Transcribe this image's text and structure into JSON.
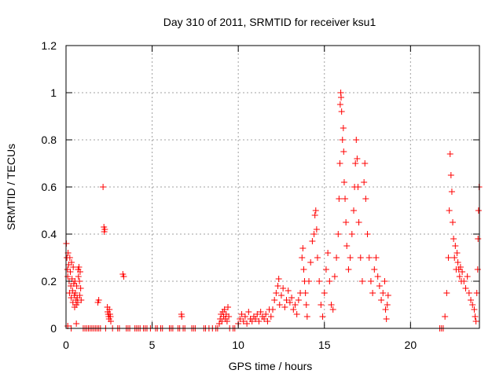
{
  "chart_data": {
    "type": "scatter",
    "title": "Day 310 of 2011, SRMTID for receiver ksu1",
    "xlabel": "GPS time / hours",
    "ylabel": "SRMTID / TECUs",
    "xlim": [
      0,
      24
    ],
    "ylim": [
      0,
      1.2
    ],
    "xticks": [
      0,
      5,
      10,
      15,
      20
    ],
    "xtick_labels": [
      "0",
      "5",
      "10",
      "15",
      "20"
    ],
    "yticks": [
      0,
      0.2,
      0.4,
      0.6,
      0.8,
      1,
      1.2
    ],
    "ytick_labels": [
      "0",
      "0.2",
      "0.4",
      "0.6",
      "0.8",
      "1",
      "1.2"
    ],
    "grid": true,
    "marker": "+",
    "series_color": "#ff0000",
    "series": [
      {
        "name": "",
        "points": [
          [
            0.02,
            0.36
          ],
          [
            0.05,
            0.3
          ],
          [
            0.08,
            0.25
          ],
          [
            0.1,
            0.22
          ],
          [
            0.12,
            0.32
          ],
          [
            0.15,
            0.27
          ],
          [
            0.18,
            0.2
          ],
          [
            0.2,
            0.15
          ],
          [
            0.22,
            0.3
          ],
          [
            0.25,
            0.24
          ],
          [
            0.28,
            0.18
          ],
          [
            0.3,
            0.13
          ],
          [
            0.32,
            0.28
          ],
          [
            0.35,
            0.21
          ],
          [
            0.38,
            0.16
          ],
          [
            0.4,
            0.11
          ],
          [
            0.42,
            0.26
          ],
          [
            0.45,
            0.19
          ],
          [
            0.48,
            0.14
          ],
          [
            0.5,
            0.09
          ],
          [
            0.52,
            0.2
          ],
          [
            0.55,
            0.15
          ],
          [
            0.58,
            0.12
          ],
          [
            0.6,
            0.1
          ],
          [
            0.62,
            0.18
          ],
          [
            0.65,
            0.13
          ],
          [
            0.68,
            0.11
          ],
          [
            0.7,
            0.25
          ],
          [
            0.72,
            0.22
          ],
          [
            0.75,
            0.26
          ],
          [
            0.78,
            0.2
          ],
          [
            0.8,
            0.14
          ],
          [
            0.82,
            0.24
          ],
          [
            0.85,
            0.17
          ],
          [
            0.88,
            0.12
          ],
          [
            0.1,
            0.01
          ],
          [
            0.3,
            0.0
          ],
          [
            0.6,
            0.02
          ],
          [
            1.0,
            0.0
          ],
          [
            1.1,
            0.0
          ],
          [
            1.2,
            0.0
          ],
          [
            1.3,
            0.0
          ],
          [
            1.4,
            0.0
          ],
          [
            1.5,
            0.0
          ],
          [
            1.6,
            0.0
          ],
          [
            1.7,
            0.0
          ],
          [
            1.8,
            0.0
          ],
          [
            1.9,
            0.0
          ],
          [
            2.0,
            0.0
          ],
          [
            1.85,
            0.11
          ],
          [
            1.9,
            0.12
          ],
          [
            2.15,
            0.6
          ],
          [
            2.2,
            0.43
          ],
          [
            2.22,
            0.41
          ],
          [
            2.25,
            0.42
          ],
          [
            2.4,
            0.09
          ],
          [
            2.42,
            0.07
          ],
          [
            2.45,
            0.06
          ],
          [
            2.48,
            0.05
          ],
          [
            2.5,
            0.04
          ],
          [
            2.52,
            0.08
          ],
          [
            2.55,
            0.06
          ],
          [
            2.58,
            0.05
          ],
          [
            2.6,
            0.03
          ],
          [
            2.3,
            0.0
          ],
          [
            2.7,
            0.0
          ],
          [
            3.0,
            0.0
          ],
          [
            3.1,
            0.0
          ],
          [
            3.3,
            0.23
          ],
          [
            3.35,
            0.22
          ],
          [
            3.5,
            0.0
          ],
          [
            3.6,
            0.0
          ],
          [
            3.7,
            0.0
          ],
          [
            4.0,
            0.0
          ],
          [
            4.1,
            0.0
          ],
          [
            4.2,
            0.0
          ],
          [
            4.3,
            0.0
          ],
          [
            4.5,
            0.0
          ],
          [
            4.6,
            0.0
          ],
          [
            4.7,
            0.0
          ],
          [
            4.9,
            0.0
          ],
          [
            5.2,
            0.0
          ],
          [
            5.3,
            0.0
          ],
          [
            5.5,
            0.0
          ],
          [
            5.6,
            0.0
          ],
          [
            6.0,
            0.0
          ],
          [
            6.1,
            0.0
          ],
          [
            6.2,
            0.0
          ],
          [
            6.5,
            0.0
          ],
          [
            6.6,
            0.0
          ],
          [
            6.7,
            0.06
          ],
          [
            6.72,
            0.05
          ],
          [
            6.8,
            0.0
          ],
          [
            6.9,
            0.0
          ],
          [
            7.3,
            0.0
          ],
          [
            7.4,
            0.0
          ],
          [
            7.5,
            0.0
          ],
          [
            8.0,
            0.0
          ],
          [
            8.1,
            0.0
          ],
          [
            8.3,
            0.0
          ],
          [
            8.5,
            0.0
          ],
          [
            8.7,
            0.0
          ],
          [
            8.8,
            0.0
          ],
          [
            8.9,
            0.02
          ],
          [
            8.95,
            0.04
          ],
          [
            9.0,
            0.06
          ],
          [
            9.05,
            0.03
          ],
          [
            9.1,
            0.07
          ],
          [
            9.15,
            0.05
          ],
          [
            9.2,
            0.08
          ],
          [
            9.25,
            0.04
          ],
          [
            9.3,
            0.06
          ],
          [
            9.35,
            0.03
          ],
          [
            9.4,
            0.09
          ],
          [
            9.45,
            0.05
          ],
          [
            9.5,
            0.0
          ],
          [
            9.7,
            0.0
          ],
          [
            9.8,
            0.0
          ],
          [
            10.0,
            0.02
          ],
          [
            10.1,
            0.04
          ],
          [
            10.2,
            0.06
          ],
          [
            10.3,
            0.03
          ],
          [
            10.4,
            0.05
          ],
          [
            10.5,
            0.02
          ],
          [
            10.6,
            0.07
          ],
          [
            10.7,
            0.04
          ],
          [
            10.8,
            0.03
          ],
          [
            10.9,
            0.05
          ],
          [
            11.0,
            0.04
          ],
          [
            11.1,
            0.06
          ],
          [
            11.2,
            0.03
          ],
          [
            11.3,
            0.07
          ],
          [
            11.4,
            0.05
          ],
          [
            11.5,
            0.04
          ],
          [
            11.6,
            0.06
          ],
          [
            11.7,
            0.03
          ],
          [
            11.8,
            0.08
          ],
          [
            11.9,
            0.05
          ],
          [
            12.0,
            0.08
          ],
          [
            12.1,
            0.12
          ],
          [
            12.2,
            0.15
          ],
          [
            12.3,
            0.18
          ],
          [
            12.35,
            0.21
          ],
          [
            12.4,
            0.1
          ],
          [
            12.5,
            0.14
          ],
          [
            12.6,
            0.17
          ],
          [
            12.7,
            0.09
          ],
          [
            12.8,
            0.12
          ],
          [
            12.9,
            0.16
          ],
          [
            13.0,
            0.11
          ],
          [
            13.1,
            0.13
          ],
          [
            13.2,
            0.08
          ],
          [
            13.3,
            0.1
          ],
          [
            13.4,
            0.06
          ],
          [
            13.5,
            0.12
          ],
          [
            13.6,
            0.15
          ],
          [
            13.7,
            0.3
          ],
          [
            13.75,
            0.34
          ],
          [
            13.8,
            0.25
          ],
          [
            13.85,
            0.2
          ],
          [
            13.9,
            0.15
          ],
          [
            13.95,
            0.1
          ],
          [
            14.0,
            0.05
          ],
          [
            14.1,
            0.2
          ],
          [
            14.2,
            0.28
          ],
          [
            14.3,
            0.37
          ],
          [
            14.4,
            0.4
          ],
          [
            14.45,
            0.48
          ],
          [
            14.5,
            0.5
          ],
          [
            14.55,
            0.42
          ],
          [
            14.6,
            0.3
          ],
          [
            14.7,
            0.2
          ],
          [
            14.8,
            0.1
          ],
          [
            14.9,
            0.05
          ],
          [
            15.0,
            0.15
          ],
          [
            15.1,
            0.25
          ],
          [
            15.2,
            0.32
          ],
          [
            15.3,
            0.2
          ],
          [
            15.4,
            0.1
          ],
          [
            15.5,
            0.08
          ],
          [
            15.6,
            0.22
          ],
          [
            15.7,
            0.3
          ],
          [
            15.8,
            0.4
          ],
          [
            15.85,
            0.55
          ],
          [
            15.9,
            0.7
          ],
          [
            15.92,
            0.95
          ],
          [
            15.95,
            1.0
          ],
          [
            15.97,
            0.98
          ],
          [
            16.0,
            0.92
          ],
          [
            16.05,
            0.8
          ],
          [
            16.1,
            0.85
          ],
          [
            16.12,
            0.75
          ],
          [
            16.15,
            0.62
          ],
          [
            16.2,
            0.55
          ],
          [
            16.25,
            0.45
          ],
          [
            16.3,
            0.35
          ],
          [
            16.4,
            0.25
          ],
          [
            16.5,
            0.3
          ],
          [
            16.6,
            0.4
          ],
          [
            16.7,
            0.5
          ],
          [
            16.75,
            0.6
          ],
          [
            16.8,
            0.7
          ],
          [
            16.85,
            0.8
          ],
          [
            16.9,
            0.72
          ],
          [
            16.95,
            0.6
          ],
          [
            17.0,
            0.45
          ],
          [
            17.1,
            0.3
          ],
          [
            17.2,
            0.2
          ],
          [
            17.3,
            0.62
          ],
          [
            17.35,
            0.7
          ],
          [
            17.4,
            0.55
          ],
          [
            17.5,
            0.4
          ],
          [
            17.6,
            0.3
          ],
          [
            17.7,
            0.2
          ],
          [
            17.8,
            0.15
          ],
          [
            17.9,
            0.25
          ],
          [
            18.0,
            0.3
          ],
          [
            18.1,
            0.22
          ],
          [
            18.2,
            0.18
          ],
          [
            18.3,
            0.12
          ],
          [
            18.4,
            0.15
          ],
          [
            18.5,
            0.2
          ],
          [
            18.55,
            0.08
          ],
          [
            18.6,
            0.04
          ],
          [
            18.65,
            0.1
          ],
          [
            18.7,
            0.14
          ],
          [
            21.7,
            0.0
          ],
          [
            21.8,
            0.0
          ],
          [
            21.9,
            0.0
          ],
          [
            22.0,
            0.05
          ],
          [
            22.1,
            0.15
          ],
          [
            22.2,
            0.3
          ],
          [
            22.25,
            0.5
          ],
          [
            22.3,
            0.74
          ],
          [
            22.35,
            0.65
          ],
          [
            22.4,
            0.58
          ],
          [
            22.45,
            0.45
          ],
          [
            22.5,
            0.38
          ],
          [
            22.55,
            0.3
          ],
          [
            22.6,
            0.35
          ],
          [
            22.65,
            0.25
          ],
          [
            22.7,
            0.32
          ],
          [
            22.75,
            0.28
          ],
          [
            22.8,
            0.25
          ],
          [
            22.85,
            0.22
          ],
          [
            22.9,
            0.26
          ],
          [
            22.95,
            0.2
          ],
          [
            23.0,
            0.24
          ],
          [
            23.1,
            0.2
          ],
          [
            23.2,
            0.17
          ],
          [
            23.3,
            0.22
          ],
          [
            23.4,
            0.15
          ],
          [
            23.5,
            0.12
          ],
          [
            23.6,
            0.1
          ],
          [
            23.7,
            0.08
          ],
          [
            23.75,
            0.05
          ],
          [
            23.8,
            0.03
          ],
          [
            23.85,
            0.15
          ],
          [
            23.9,
            0.25
          ],
          [
            23.92,
            0.38
          ],
          [
            23.95,
            0.5
          ],
          [
            23.98,
            0.6
          ]
        ]
      }
    ]
  }
}
